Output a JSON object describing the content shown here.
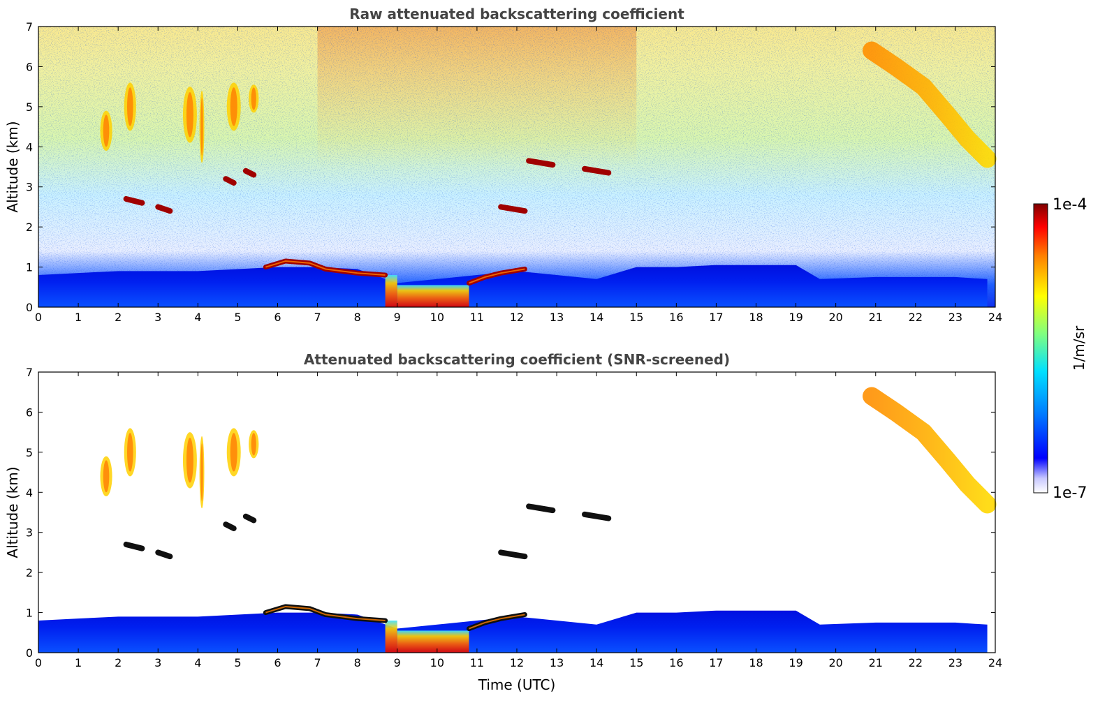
{
  "chart_data": [
    {
      "type": "heatmap",
      "title": "Raw attenuated backscattering coefficient",
      "xlabel": "",
      "ylabel": "Altitude (km)",
      "xlim": [
        0,
        24
      ],
      "ylim": [
        0,
        7
      ],
      "xticks": [
        "0",
        "1",
        "2",
        "3",
        "4",
        "5",
        "6",
        "7",
        "8",
        "9",
        "10",
        "11",
        "12",
        "13",
        "14",
        "15",
        "16",
        "17",
        "18",
        "19",
        "20",
        "21",
        "22",
        "23",
        "24"
      ],
      "yticks": [
        "0",
        "1",
        "2",
        "3",
        "4",
        "5",
        "6",
        "7"
      ],
      "screened": false
    },
    {
      "type": "heatmap",
      "title": "Attenuated backscattering coefficient (SNR-screened)",
      "xlabel": "Time (UTC)",
      "ylabel": "Altitude (km)",
      "xlim": [
        0,
        24
      ],
      "ylim": [
        0,
        7
      ],
      "xticks": [
        "0",
        "1",
        "2",
        "3",
        "4",
        "5",
        "6",
        "7",
        "8",
        "9",
        "10",
        "11",
        "12",
        "13",
        "14",
        "15",
        "16",
        "17",
        "18",
        "19",
        "20",
        "21",
        "22",
        "23",
        "24"
      ],
      "yticks": [
        "0",
        "1",
        "2",
        "3",
        "4",
        "5",
        "6",
        "7"
      ],
      "screened": true
    }
  ],
  "colorbar": {
    "label": "1/m/sr",
    "max_label": "1e-4",
    "min_label": "1e-7",
    "range": [
      1e-07,
      0.0001
    ],
    "scale": "log",
    "colors": [
      "#ffffff",
      "#c8c8ff",
      "#0000ff",
      "#0080ff",
      "#00e0ff",
      "#80ff80",
      "#ffff00",
      "#ff8000",
      "#ff0000",
      "#800000"
    ]
  },
  "features": {
    "boundary_layer": [
      [
        0,
        0.8
      ],
      [
        1,
        0.85
      ],
      [
        2,
        0.9
      ],
      [
        3,
        0.9
      ],
      [
        4,
        0.9
      ],
      [
        5,
        0.95
      ],
      [
        6,
        1.0
      ],
      [
        7,
        1.0
      ],
      [
        8,
        0.95
      ],
      [
        9,
        0.6
      ],
      [
        10,
        0.7
      ],
      [
        11,
        0.8
      ],
      [
        12,
        0.9
      ],
      [
        13,
        0.8
      ],
      [
        14,
        0.7
      ],
      [
        15,
        1.0
      ],
      [
        16,
        1.0
      ],
      [
        17,
        1.05
      ],
      [
        18,
        1.05
      ],
      [
        19,
        1.05
      ],
      [
        19.6,
        0.7
      ],
      [
        21,
        0.75
      ],
      [
        22,
        0.75
      ],
      [
        23,
        0.75
      ],
      [
        23.8,
        0.7
      ]
    ],
    "dense_layer": [
      [
        5.7,
        1.0
      ],
      [
        6.2,
        1.15
      ],
      [
        6.8,
        1.1
      ],
      [
        7.2,
        0.95
      ],
      [
        8,
        0.85
      ],
      [
        8.7,
        0.8
      ]
    ],
    "dense_layer_2": [
      [
        10.8,
        0.6
      ],
      [
        11.2,
        0.75
      ],
      [
        11.6,
        0.85
      ],
      [
        12.2,
        0.95
      ]
    ],
    "convective": [
      [
        8.7,
        0.0,
        9.0,
        0.8
      ],
      [
        9.0,
        0.0,
        10.8,
        0.55
      ]
    ],
    "cirrus_band": [
      [
        20.9,
        6.4
      ],
      [
        21.5,
        6.0
      ],
      [
        22.2,
        5.5
      ],
      [
        22.8,
        4.8
      ],
      [
        23.3,
        4.2
      ],
      [
        23.8,
        3.7
      ]
    ],
    "mid_clouds": [
      [
        1.7,
        4.4,
        0.3,
        1.0
      ],
      [
        2.3,
        5.0,
        0.3,
        1.2
      ],
      [
        3.8,
        4.8,
        0.35,
        1.4
      ],
      [
        4.1,
        4.5,
        0.12,
        1.8
      ],
      [
        4.9,
        5.0,
        0.35,
        1.2
      ],
      [
        5.4,
        5.2,
        0.25,
        0.7
      ]
    ],
    "black_segments": [
      [
        2.2,
        2.6,
        2.7
      ],
      [
        3.0,
        3.3,
        2.5
      ],
      [
        4.7,
        4.9,
        3.2
      ],
      [
        5.2,
        5.4,
        3.4
      ],
      [
        11.6,
        12.2,
        2.5
      ],
      [
        12.3,
        12.9,
        3.65
      ],
      [
        13.7,
        14.3,
        3.45
      ]
    ]
  }
}
